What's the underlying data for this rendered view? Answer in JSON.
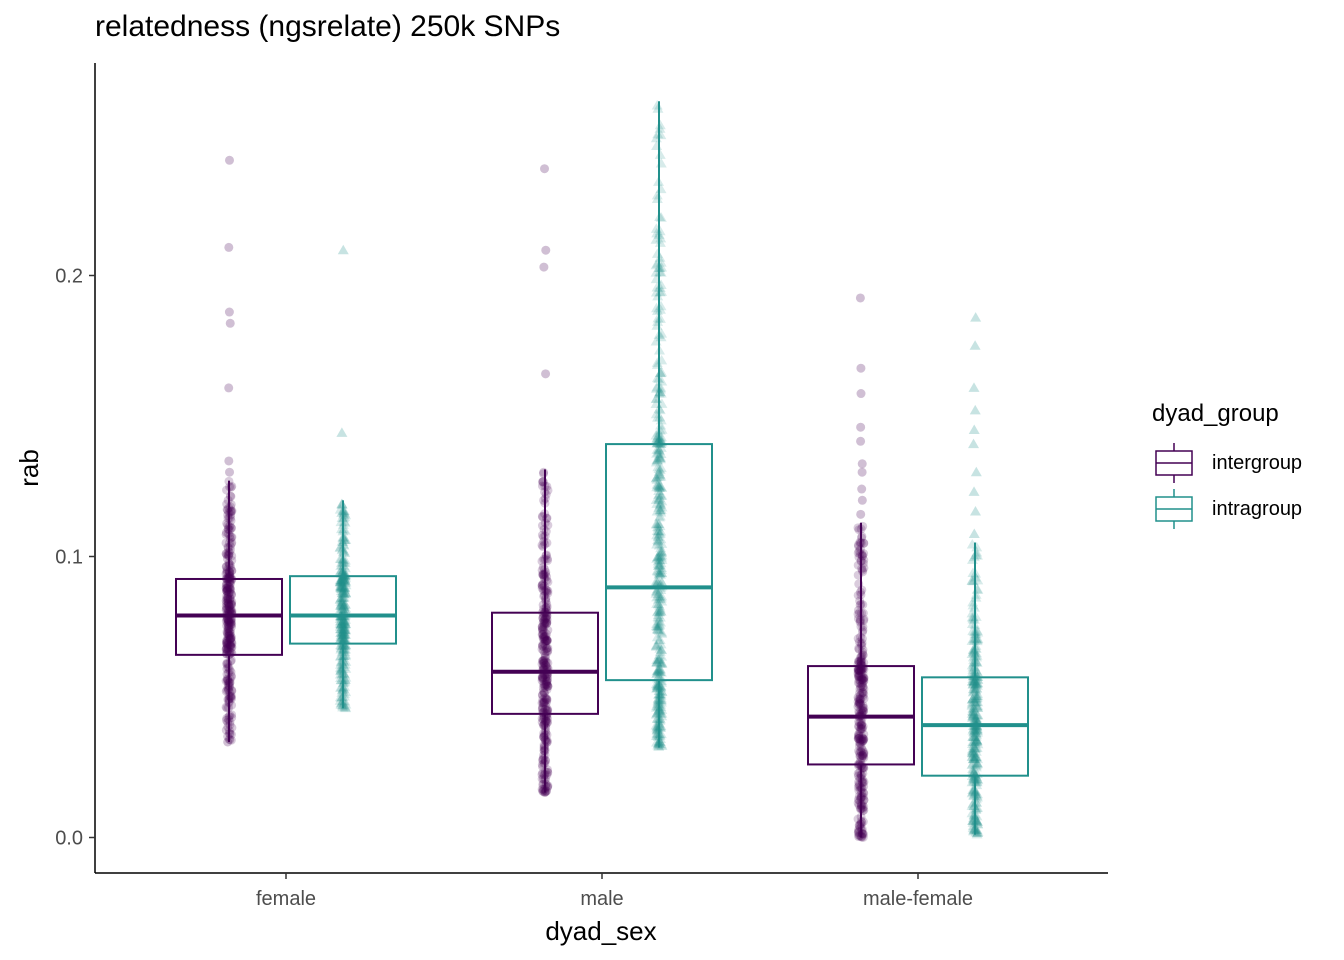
{
  "chart_data": {
    "type": "boxplot",
    "title": "relatedness (ngsrelate) 250k SNPs",
    "xlabel": "dyad_sex",
    "ylabel": "rab",
    "categories": [
      "female",
      "male",
      "male-female"
    ],
    "ylim": [
      -0.012,
      0.264
    ],
    "yticks": [
      0.0,
      0.1,
      0.2
    ],
    "legend": {
      "title": "dyad_group",
      "position": "right"
    },
    "colors": {
      "intergroup": "#440154",
      "intragroup": "#21908C"
    },
    "groups": [
      {
        "name": "intergroup",
        "boxes": [
          {
            "category": "female",
            "q1": 0.065,
            "median": 0.079,
            "q3": 0.092,
            "whisker_low": 0.034,
            "whisker_high": 0.127,
            "outliers": [
              0.034,
              0.037,
              0.13,
              0.134,
              0.16,
              0.183,
              0.187,
              0.21,
              0.241
            ]
          },
          {
            "category": "male",
            "q1": 0.044,
            "median": 0.059,
            "q3": 0.08,
            "whisker_low": 0.016,
            "whisker_high": 0.131,
            "outliers": [
              0.016,
              0.019,
              0.165,
              0.203,
              0.209,
              0.238
            ]
          },
          {
            "category": "male-female",
            "q1": 0.026,
            "median": 0.043,
            "q3": 0.061,
            "whisker_low": 0.0,
            "whisker_high": 0.112,
            "outliers": [
              0.115,
              0.12,
              0.124,
              0.13,
              0.133,
              0.141,
              0.146,
              0.158,
              0.167,
              0.192
            ]
          }
        ]
      },
      {
        "name": "intragroup",
        "boxes": [
          {
            "category": "female",
            "q1": 0.069,
            "median": 0.079,
            "q3": 0.093,
            "whisker_low": 0.046,
            "whisker_high": 0.12,
            "outliers": [
              0.144,
              0.209
            ]
          },
          {
            "category": "male",
            "q1": 0.056,
            "median": 0.089,
            "q3": 0.14,
            "whisker_low": 0.032,
            "whisker_high": 0.262,
            "outliers": []
          },
          {
            "category": "male-female",
            "q1": 0.022,
            "median": 0.04,
            "q3": 0.057,
            "whisker_low": 0.001,
            "whisker_high": 0.105,
            "outliers": [
              0.108,
              0.116,
              0.123,
              0.13,
              0.14,
              0.145,
              0.152,
              0.16,
              0.175,
              0.185
            ]
          }
        ]
      }
    ]
  }
}
